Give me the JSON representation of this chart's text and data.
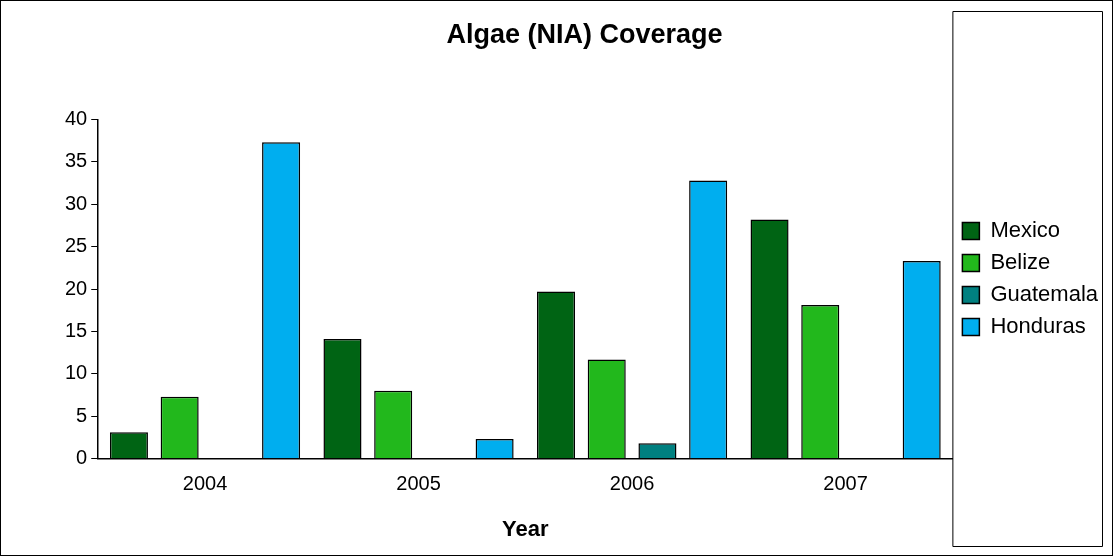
{
  "chart_data": {
    "type": "bar",
    "title": "Algae (NIA) Coverage",
    "xlabel": "Year",
    "categories": [
      "2004",
      "2005",
      "2006",
      "2007"
    ],
    "series": [
      {
        "name": "Mexico",
        "color": "#006414",
        "values": [
          3.1,
          14.1,
          19.7,
          28.2
        ]
      },
      {
        "name": "Belize",
        "color": "#22b81c",
        "values": [
          7.3,
          8.0,
          11.7,
          18.1
        ]
      },
      {
        "name": "Guatemala",
        "color": "#008080",
        "values": [
          0,
          0,
          1.8,
          0
        ]
      },
      {
        "name": "Honduras",
        "color": "#00aeef",
        "values": [
          37.3,
          2.3,
          32.8,
          23.3
        ]
      }
    ],
    "ylim": [
      0,
      40
    ],
    "yticks": [
      0,
      5,
      10,
      15,
      20,
      25,
      30,
      35,
      40
    ],
    "grid": false,
    "legend": "right"
  }
}
